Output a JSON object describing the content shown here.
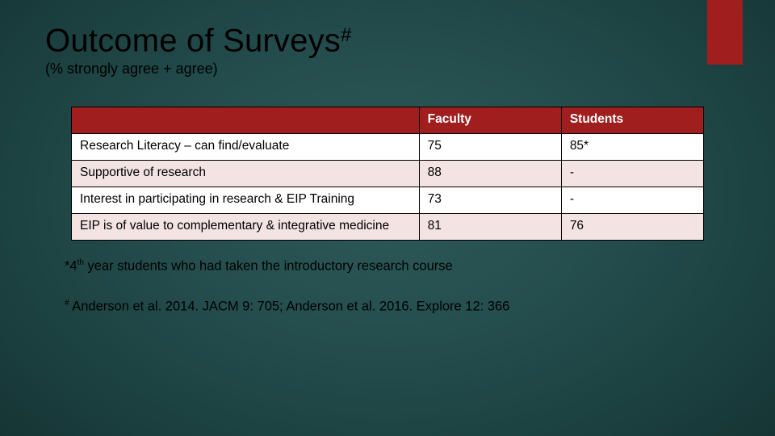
{
  "title": {
    "main": "Outcome of Surveys",
    "super": "#"
  },
  "subtitle": "(% strongly agree + agree)",
  "table": {
    "columns": [
      "",
      "Faculty",
      "Students"
    ],
    "rows": [
      {
        "label": "Research Literacy – can find/evaluate",
        "faculty": "75",
        "students": "85*"
      },
      {
        "label": "Supportive of research",
        "faculty": "88",
        "students": "-"
      },
      {
        "label": "Interest in participating in research & EIP Training",
        "faculty": "73",
        "students": "-"
      },
      {
        "label": "EIP is of value to complementary & integrative medicine",
        "faculty": "81",
        "students": "76"
      }
    ],
    "header_bg": "#a01e1e",
    "header_fg": "#ffffff",
    "row_bg": "#ffffff",
    "alt_row_bg": "#f3e3e3",
    "border_color": "#000000",
    "font_size": 15.5
  },
  "footnotes": {
    "star_prefix": "*4",
    "star_ord": "th",
    "star_rest": " year students who had taken the introductory research course",
    "hash_prefix": "#",
    "hash_rest": " Anderson et al. 2014. JACM 9: 705; Anderson et al. 2016. Explore 12: 366"
  },
  "accent_color": "#a01e1e",
  "background_colors": {
    "center": "#2e5a5a",
    "edge": "#0c1f1f"
  }
}
